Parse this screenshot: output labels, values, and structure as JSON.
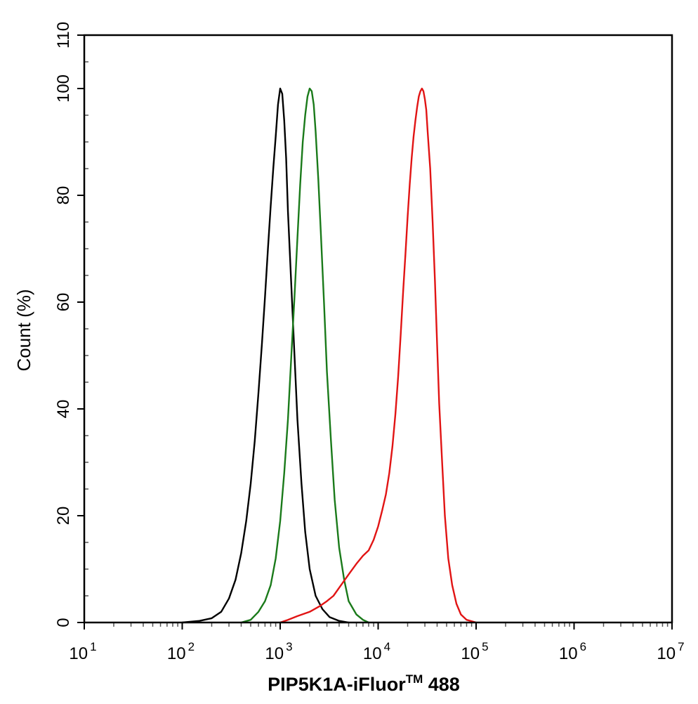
{
  "chart_data": {
    "type": "line",
    "title": "",
    "xlabel": "PIP5K1A-iFluor",
    "xlabel_suffix": "TM",
    "xlabel_tail": " 488",
    "ylabel": "Count  (%)",
    "x_scale": "log",
    "xlim": [
      10,
      10000000
    ],
    "ylim": [
      0,
      110
    ],
    "x_ticks": [
      {
        "base": "10",
        "exp": "1"
      },
      {
        "base": "10",
        "exp": "2"
      },
      {
        "base": "10",
        "exp": "3"
      },
      {
        "base": "10",
        "exp": "4"
      },
      {
        "base": "10",
        "exp": "5"
      },
      {
        "base": "10",
        "exp": "6"
      },
      {
        "base": "10",
        "exp": "7"
      }
    ],
    "y_ticks": [
      "0",
      "20",
      "40",
      "60",
      "80",
      "100",
      "110"
    ],
    "grid": false,
    "legend": "none",
    "series": [
      {
        "color": "#000000",
        "points": [
          [
            100,
            0
          ],
          [
            150,
            0.3
          ],
          [
            200,
            0.8
          ],
          [
            250,
            2
          ],
          [
            300,
            4.5
          ],
          [
            350,
            8
          ],
          [
            400,
            13
          ],
          [
            450,
            19
          ],
          [
            500,
            26
          ],
          [
            550,
            34
          ],
          [
            600,
            43
          ],
          [
            650,
            52
          ],
          [
            700,
            61
          ],
          [
            750,
            70
          ],
          [
            800,
            78
          ],
          [
            850,
            85
          ],
          [
            900,
            91
          ],
          [
            950,
            97
          ],
          [
            1000,
            100
          ],
          [
            1050,
            99
          ],
          [
            1100,
            94
          ],
          [
            1150,
            87
          ],
          [
            1200,
            77
          ],
          [
            1300,
            63
          ],
          [
            1400,
            50
          ],
          [
            1500,
            38
          ],
          [
            1650,
            26
          ],
          [
            1800,
            17
          ],
          [
            2000,
            10
          ],
          [
            2300,
            5
          ],
          [
            2700,
            2.5
          ],
          [
            3200,
            1
          ],
          [
            4000,
            0.3
          ],
          [
            5000,
            0
          ]
        ]
      },
      {
        "color": "#1a7a1a",
        "points": [
          [
            400,
            0
          ],
          [
            500,
            0.5
          ],
          [
            600,
            2
          ],
          [
            700,
            4
          ],
          [
            800,
            7
          ],
          [
            900,
            12
          ],
          [
            1000,
            19
          ],
          [
            1100,
            28
          ],
          [
            1200,
            38
          ],
          [
            1300,
            50
          ],
          [
            1400,
            61
          ],
          [
            1500,
            72
          ],
          [
            1600,
            82
          ],
          [
            1700,
            90
          ],
          [
            1800,
            95
          ],
          [
            1900,
            98.5
          ],
          [
            2000,
            100
          ],
          [
            2100,
            99.5
          ],
          [
            2200,
            97
          ],
          [
            2300,
            92
          ],
          [
            2450,
            83
          ],
          [
            2600,
            73
          ],
          [
            2800,
            60
          ],
          [
            3000,
            47
          ],
          [
            3300,
            34
          ],
          [
            3600,
            23
          ],
          [
            4000,
            14
          ],
          [
            4500,
            8
          ],
          [
            5000,
            4
          ],
          [
            6000,
            1.5
          ],
          [
            7000,
            0.5
          ],
          [
            8000,
            0
          ]
        ]
      },
      {
        "color": "#e11414",
        "points": [
          [
            1000,
            0
          ],
          [
            1200,
            0.5
          ],
          [
            1500,
            1.2
          ],
          [
            2000,
            2
          ],
          [
            2500,
            3
          ],
          [
            3000,
            4
          ],
          [
            3500,
            5
          ],
          [
            4000,
            6.5
          ],
          [
            5000,
            9
          ],
          [
            6000,
            11
          ],
          [
            7000,
            12.5
          ],
          [
            8000,
            13.5
          ],
          [
            9000,
            15.5
          ],
          [
            10000,
            18
          ],
          [
            11000,
            21
          ],
          [
            12000,
            24
          ],
          [
            13000,
            28
          ],
          [
            14000,
            33
          ],
          [
            15000,
            39
          ],
          [
            16000,
            46
          ],
          [
            17000,
            54
          ],
          [
            18000,
            62
          ],
          [
            19000,
            69
          ],
          [
            20000,
            76
          ],
          [
            21000,
            82
          ],
          [
            22000,
            87
          ],
          [
            23000,
            91
          ],
          [
            24000,
            94
          ],
          [
            25000,
            96.5
          ],
          [
            26000,
            98.5
          ],
          [
            27000,
            99.5
          ],
          [
            28000,
            100
          ],
          [
            29000,
            99.5
          ],
          [
            30000,
            98
          ],
          [
            31000,
            96
          ],
          [
            32000,
            92
          ],
          [
            34000,
            85
          ],
          [
            36000,
            75
          ],
          [
            38000,
            64
          ],
          [
            40000,
            52
          ],
          [
            42000,
            41
          ],
          [
            45000,
            30
          ],
          [
            48000,
            20
          ],
          [
            52000,
            12
          ],
          [
            57000,
            7
          ],
          [
            63000,
            3.5
          ],
          [
            70000,
            1.5
          ],
          [
            80000,
            0.5
          ],
          [
            100000,
            0
          ]
        ]
      }
    ]
  }
}
